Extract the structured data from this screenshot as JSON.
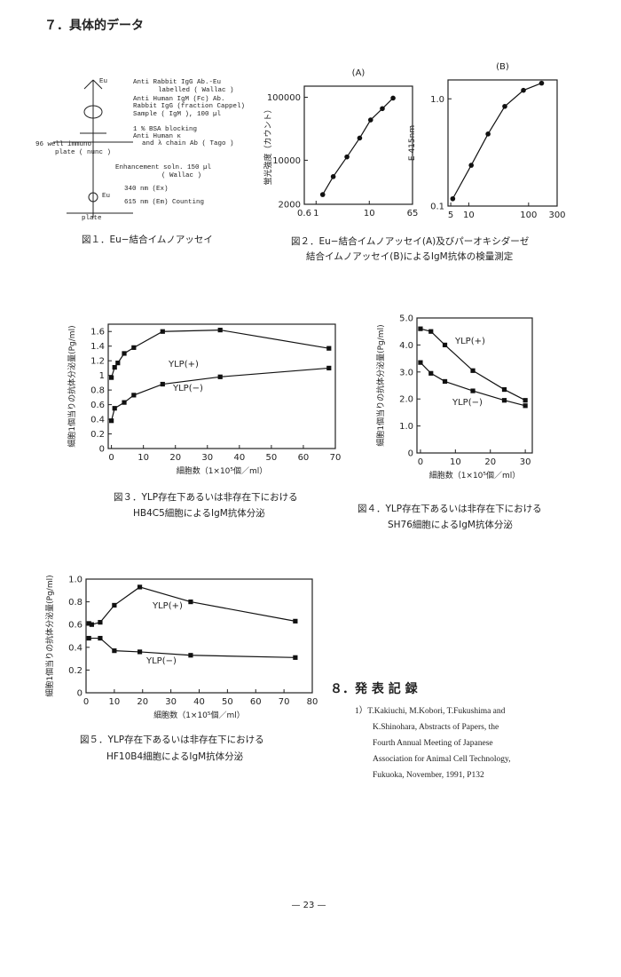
{
  "heading": "７．具体的データ",
  "figure1": {
    "labels": [
      "Eu",
      "Anti Rabbit IgG Ab.-Eu",
      "labelled ( Wallac )",
      "Anti Human IgM (Fc) Ab.",
      "Rabbit IgG (fraction Cappel)",
      "Sample ( IgM ), 100 µl",
      "1 % BSA blocking",
      "Anti Human κ",
      "and λ chain Ab ( Tago )",
      "96 well immuno",
      "plate ( nunc )",
      "Enhancement soln. 150 µl",
      "( Wallac )",
      "Eu",
      "340 nm (Ex)",
      "615 nm (Em)   Counting",
      "plate"
    ],
    "caption": "図１．Eu−結合イムノアッセイ"
  },
  "figure2_caption": [
    "図２．Eu−結合イムノアッセイ(A)及びパーオキシダーゼ",
    "結合イムノアッセイ(B)によるIgM抗体の検量測定"
  ],
  "figure3_caption": [
    "図３．YLP存在下あるいは非存在下における",
    "HB4C5細胞によるIgM抗体分泌"
  ],
  "figure4_caption": [
    "図４．YLP存在下あるいは非存在下における",
    "SH76細胞によるIgM抗体分泌"
  ],
  "figure5_caption": [
    "図５．YLP存在下あるいは非存在下における",
    "HF10B4細胞によるIgM抗体分泌"
  ],
  "section8": "８．発 表 記 録",
  "references": [
    "1）T.Kakiuchi, M.Kobori, T.Fukushima and",
    "K.Shinohara, Abstracts of Papers, the",
    "Fourth Annual Meeting of Japanese",
    "Association for Animal Cell Technology,",
    "Fukuoka, November, 1991, P132"
  ],
  "page_number": "— 23 —",
  "chart_data": [
    {
      "type": "line",
      "title": "(A)",
      "y_label": "蛍光強度（カウント）",
      "xlog": true,
      "ylog": true,
      "xlim": [
        0.6,
        65
      ],
      "xticks": [
        0.6,
        1,
        10,
        65
      ],
      "ylim": [
        2000,
        150000
      ],
      "yticks": [
        2000,
        10000,
        100000
      ],
      "series": [
        {
          "color": "#111111",
          "x": [
            1.33,
            2.1,
            3.8,
            6.6,
            10.6,
            17.6,
            28
          ],
          "values": [
            2850,
            5500,
            11300,
            22500,
            43600,
            66000,
            97000
          ]
        }
      ]
    },
    {
      "type": "line",
      "title": "(B)",
      "y_label": "E 415nm",
      "xlog": true,
      "ylog": true,
      "xlim": [
        4.5,
        300
      ],
      "xticks": [
        5,
        10,
        100,
        300
      ],
      "ylim": [
        0.1,
        1.5
      ],
      "yticks": [
        0.1,
        {
          "value": 1,
          "label": "1.0"
        }
      ],
      "series": [
        {
          "color": "#111111",
          "x": [
            5.4,
            11,
            21,
            40,
            82,
            165
          ],
          "values": [
            0.117,
            0.24,
            0.47,
            0.85,
            1.2,
            1.4
          ]
        }
      ]
    },
    {
      "type": "line",
      "y_label": "細胞1個当りの抗体分泌量(Pg/ml)",
      "x_label": "細胞数（1×10⁵個／ml）",
      "xlim": [
        -1,
        70
      ],
      "xticks": [
        0,
        10,
        20,
        30,
        40,
        50,
        60,
        70
      ],
      "ylim": [
        0,
        1.7
      ],
      "yticks": [
        0,
        0.2,
        0.4,
        0.6,
        0.8,
        1,
        1.2,
        1.4,
        1.6
      ],
      "series": [
        {
          "name": "YLP(+)",
          "color": "#111111",
          "x": [
            0,
            1,
            2,
            4,
            7,
            16,
            34,
            68
          ],
          "values": [
            0.97,
            1.11,
            1.17,
            1.3,
            1.38,
            1.6,
            1.62,
            1.37
          ]
        },
        {
          "name": "YLP(−)",
          "color": "#111111",
          "x": [
            0,
            1,
            4,
            7,
            16,
            34,
            68
          ],
          "values": [
            0.38,
            0.55,
            0.63,
            0.73,
            0.88,
            0.98,
            1.1
          ]
        }
      ]
    },
    {
      "type": "line",
      "y_label": "細胞1個当りの抗体分泌量(Pg/ml)",
      "x_label": "細胞数（1×10⁵個／ml）",
      "xlim": [
        -1,
        32
      ],
      "xticks": [
        0,
        10,
        20,
        30
      ],
      "ylim": [
        0,
        5
      ],
      "yticks": [
        0,
        {
          "value": 1,
          "label": "1.0"
        },
        {
          "value": 2,
          "label": "2.0"
        },
        {
          "value": 3,
          "label": "3.0"
        },
        {
          "value": 4,
          "label": "4.0"
        },
        {
          "value": 5,
          "label": "5.0"
        }
      ],
      "series": [
        {
          "name": "YLP(+)",
          "color": "#111111",
          "x": [
            0,
            3,
            7,
            15,
            24,
            30
          ],
          "values": [
            4.6,
            4.5,
            4.0,
            3.05,
            2.35,
            1.95
          ]
        },
        {
          "name": "YLP(−)",
          "color": "#111111",
          "x": [
            0,
            3,
            7,
            15,
            24,
            30
          ],
          "values": [
            3.35,
            2.95,
            2.65,
            2.3,
            1.95,
            1.75
          ]
        }
      ]
    },
    {
      "type": "line",
      "y_label": "細胞1個当りの抗体分泌量(Pg/ml)",
      "x_label": "細胞数（1×10⁵個／ml）",
      "xlim": [
        0,
        80
      ],
      "xticks": [
        0,
        10,
        20,
        30,
        40,
        50,
        60,
        70,
        80
      ],
      "ylim": [
        0,
        1
      ],
      "yticks": [
        0,
        0.2,
        0.4,
        0.6,
        0.8,
        {
          "value": 1,
          "label": "1.0"
        }
      ],
      "series": [
        {
          "name": "YLP(+)",
          "color": "#111111",
          "x": [
            1,
            2,
            5,
            10,
            19,
            37,
            74
          ],
          "values": [
            0.61,
            0.6,
            0.62,
            0.77,
            0.93,
            0.8,
            0.63
          ]
        },
        {
          "name": "YLP(−)",
          "color": "#111111",
          "x": [
            1,
            5,
            10,
            19,
            37,
            74
          ],
          "values": [
            0.48,
            0.48,
            0.37,
            0.36,
            0.33,
            0.31
          ]
        }
      ]
    }
  ]
}
